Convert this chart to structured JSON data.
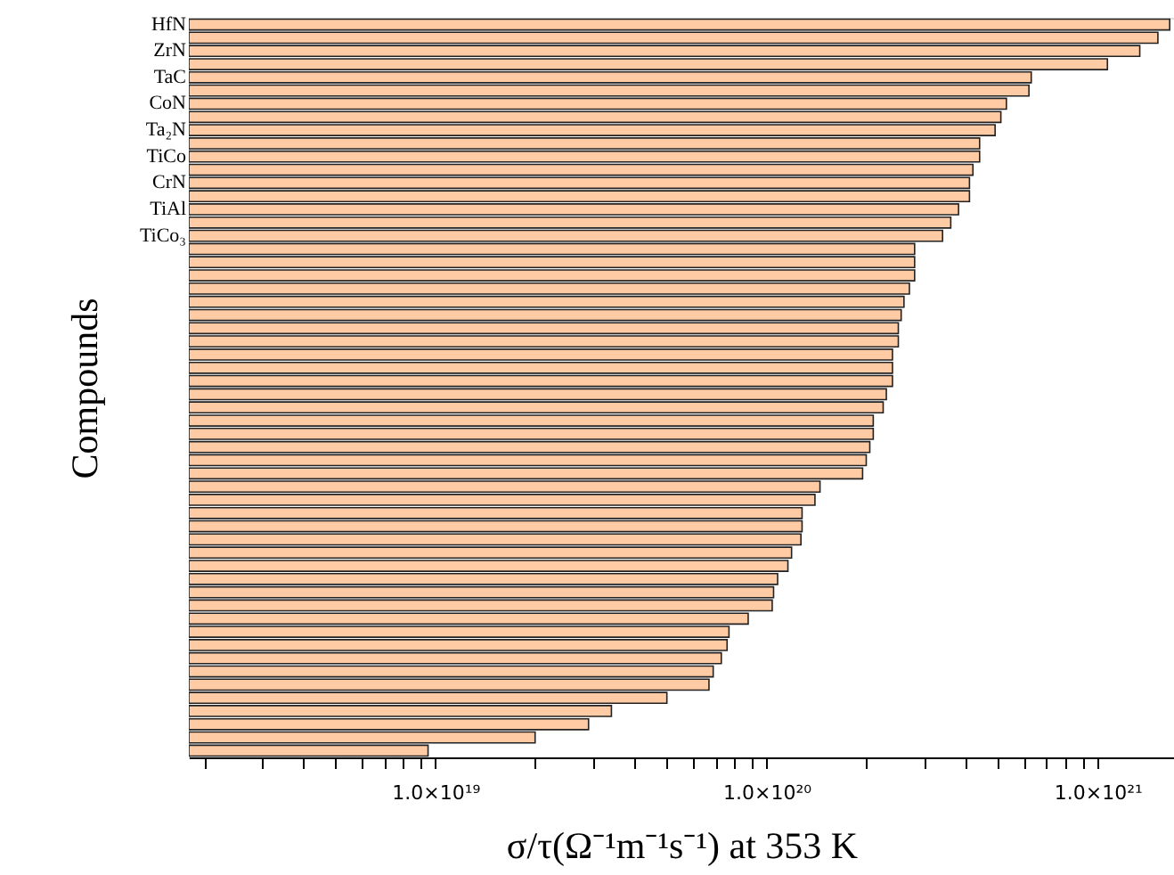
{
  "chart_data": {
    "type": "bar",
    "orientation": "horizontal",
    "log": "x",
    "xlabel": "σ/τ(Ω⁻¹m⁻¹s⁻¹) at 353 K",
    "ylabel": "Compounds",
    "color": "#ffcba4",
    "grid": false,
    "xlim": [
      1.8e+18,
      1.7e+21
    ],
    "xticks": [
      {
        "value": 2e+18,
        "label": null
      },
      {
        "value": 3e+18,
        "label": null
      },
      {
        "value": 4e+18,
        "label": null
      },
      {
        "value": 5e+18,
        "label": null
      },
      {
        "value": 6e+18,
        "label": null
      },
      {
        "value": 7e+18,
        "label": null
      },
      {
        "value": 8e+18,
        "label": null
      },
      {
        "value": 9e+18,
        "label": null
      },
      {
        "value": 1e+19,
        "label": "1.0×10¹⁹"
      },
      {
        "value": 2e+19,
        "label": null
      },
      {
        "value": 3e+19,
        "label": null
      },
      {
        "value": 4e+19,
        "label": null
      },
      {
        "value": 5e+19,
        "label": null
      },
      {
        "value": 6e+19,
        "label": null
      },
      {
        "value": 7e+19,
        "label": null
      },
      {
        "value": 8e+19,
        "label": null
      },
      {
        "value": 9e+19,
        "label": null
      },
      {
        "value": 1e+20,
        "label": "1.0×10²⁰"
      },
      {
        "value": 2e+20,
        "label": null
      },
      {
        "value": 3e+20,
        "label": null
      },
      {
        "value": 4e+20,
        "label": null
      },
      {
        "value": 5e+20,
        "label": null
      },
      {
        "value": 6e+20,
        "label": null
      },
      {
        "value": 7e+20,
        "label": null
      },
      {
        "value": 8e+20,
        "label": null
      },
      {
        "value": 9e+20,
        "label": null
      },
      {
        "value": 1e+21,
        "label": "1.0×10²¹"
      }
    ],
    "categories": [
      "HfN",
      null,
      "ZrN",
      null,
      "TaC",
      null,
      "CoN",
      null,
      "Ta₂N",
      null,
      "TiCo",
      null,
      "CrN",
      null,
      "TiAl",
      null,
      "TiCo₃",
      null,
      null,
      null,
      null,
      null,
      null,
      null,
      null,
      null,
      null,
      null,
      null,
      null,
      null,
      null,
      null,
      null,
      null,
      null,
      null,
      null,
      null,
      null,
      null,
      null,
      null,
      null,
      null,
      null,
      null,
      null,
      null,
      null,
      null,
      null,
      null,
      null,
      null,
      null
    ],
    "values": [
      1.65e+21,
      1.52e+21,
      1.34e+21,
      1.07e+21,
      6.3e+20,
      6.2e+20,
      5.3e+20,
      5.1e+20,
      4.9e+20,
      4.4e+20,
      4.4e+20,
      4.2e+20,
      4.1e+20,
      4.1e+20,
      3.8e+20,
      3.6e+20,
      3.4e+20,
      2.8e+20,
      2.8e+20,
      2.8e+20,
      2.7e+20,
      2.6e+20,
      2.55e+20,
      2.5e+20,
      2.5e+20,
      2.4e+20,
      2.4e+20,
      2.4e+20,
      2.3e+20,
      2.25e+20,
      2.1e+20,
      2.1e+20,
      2.05e+20,
      2e+20,
      1.95e+20,
      1.45e+20,
      1.4e+20,
      1.28e+20,
      1.28e+20,
      1.27e+20,
      1.19e+20,
      1.16e+20,
      1.08e+20,
      1.05e+20,
      1.04e+20,
      8.8e+19,
      7.7e+19,
      7.6e+19,
      7.3e+19,
      6.9e+19,
      6.7e+19,
      5e+19,
      3.4e+19,
      2.9e+19,
      2e+19,
      9.5e+18
    ]
  }
}
